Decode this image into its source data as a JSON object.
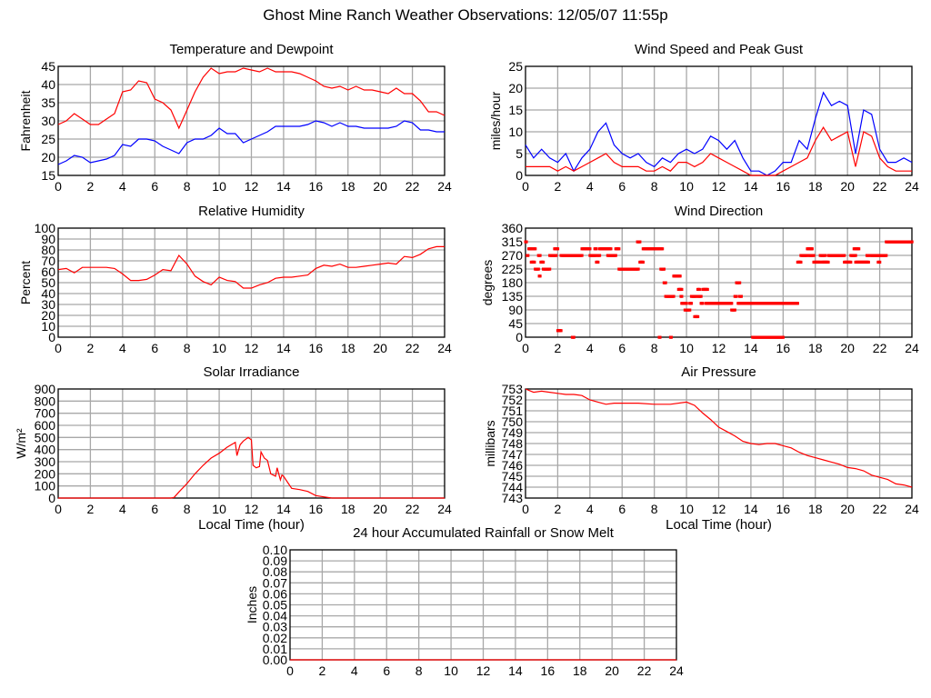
{
  "page_title": "Ghost Mine Ranch Weather Observations: 12/05/07 11:55p",
  "chart_data": [
    {
      "type": "line",
      "title": "Temperature and Dewpoint",
      "xlabel": "",
      "ylabel": "Fahrenheit",
      "xlim": [
        0,
        24
      ],
      "ylim": [
        15,
        45
      ],
      "xticks": [
        "0",
        "2",
        "4",
        "6",
        "8",
        "10",
        "12",
        "14",
        "16",
        "18",
        "20",
        "22",
        "24"
      ],
      "yticks": [
        "15",
        "20",
        "25",
        "30",
        "35",
        "40",
        "45"
      ],
      "grid": true,
      "x": [
        0,
        0.5,
        1,
        1.5,
        2,
        2.5,
        3,
        3.5,
        4,
        4.5,
        5,
        5.5,
        6,
        6.5,
        7,
        7.5,
        8,
        8.5,
        9,
        9.5,
        10,
        10.5,
        11,
        11.5,
        12,
        12.5,
        13,
        13.5,
        14,
        14.5,
        15,
        15.5,
        16,
        16.5,
        17,
        17.5,
        18,
        18.5,
        19,
        19.5,
        20,
        20.5,
        21,
        21.5,
        22,
        22.5,
        23,
        23.5,
        24
      ],
      "series": [
        {
          "name": "Temperature",
          "color": "#ff0000",
          "values": [
            29,
            30,
            32,
            30.5,
            29,
            29,
            30.5,
            32,
            38,
            38.5,
            41,
            40.5,
            36,
            35,
            33,
            28,
            33,
            38,
            42,
            44.5,
            43,
            43.5,
            43.5,
            44.5,
            44,
            43.5,
            44.5,
            43.5,
            43.5,
            43.5,
            43,
            42,
            41,
            39.5,
            39,
            39.5,
            38.5,
            39.5,
            38.5,
            38.5,
            38,
            37.5,
            39,
            37.5,
            37.5,
            35.5,
            32.5,
            32.5,
            31.5
          ]
        },
        {
          "name": "Dewpoint",
          "color": "#0000ff",
          "values": [
            18,
            19,
            20.5,
            20,
            18.5,
            19,
            19.5,
            20.5,
            23.5,
            23,
            25,
            25,
            24.5,
            23,
            22,
            21,
            24,
            25,
            25,
            26,
            28,
            26.5,
            26.5,
            24,
            25,
            26,
            27,
            28.5,
            28.5,
            28.5,
            28.5,
            29,
            30,
            29.5,
            28.5,
            29.5,
            28.5,
            28.5,
            28,
            28,
            28,
            28,
            28.5,
            30,
            29.5,
            27.5,
            27.5,
            27,
            27
          ]
        }
      ]
    },
    {
      "type": "line",
      "title": "Wind Speed and Peak Gust",
      "xlabel": "",
      "ylabel": "miles/hour",
      "xlim": [
        0,
        24
      ],
      "ylim": [
        0,
        25
      ],
      "xticks": [
        "0",
        "2",
        "4",
        "6",
        "8",
        "10",
        "12",
        "14",
        "16",
        "18",
        "20",
        "22",
        "24"
      ],
      "yticks": [
        "0",
        "5",
        "10",
        "15",
        "20",
        "25"
      ],
      "grid": true,
      "x": [
        0,
        0.5,
        1,
        1.5,
        2,
        2.5,
        3,
        3.5,
        4,
        4.5,
        5,
        5.5,
        6,
        6.5,
        7,
        7.5,
        8,
        8.5,
        9,
        9.5,
        10,
        10.5,
        11,
        11.5,
        12,
        12.5,
        13,
        13.5,
        14,
        14.5,
        15,
        15.5,
        16,
        16.5,
        17,
        17.5,
        18,
        18.5,
        19,
        19.5,
        20,
        20.5,
        21,
        21.5,
        22,
        22.5,
        23,
        23.5,
        24
      ],
      "series": [
        {
          "name": "Peak Gust",
          "color": "#0000ff",
          "values": [
            7,
            4,
            6,
            4,
            3,
            5,
            1,
            4,
            6,
            10,
            12,
            7,
            5,
            4,
            5,
            3,
            2,
            4,
            3,
            5,
            6,
            5,
            6,
            9,
            8,
            6,
            8,
            4,
            1,
            1,
            0,
            1,
            3,
            3,
            8,
            6,
            13,
            19,
            16,
            17,
            16,
            5,
            15,
            14,
            6,
            3,
            3,
            4,
            3
          ]
        },
        {
          "name": "Wind Speed",
          "color": "#ff0000",
          "values": [
            2,
            2,
            2,
            2,
            1,
            2,
            1,
            2,
            3,
            4,
            5,
            3,
            2,
            2,
            2,
            1,
            1,
            2,
            1,
            3,
            3,
            2,
            3,
            5,
            4,
            3,
            2,
            1,
            0,
            0,
            0,
            0,
            1,
            2,
            3,
            4,
            8,
            11,
            8,
            9,
            10,
            2,
            10,
            9,
            4,
            2,
            1,
            1,
            1
          ]
        }
      ]
    },
    {
      "type": "line",
      "title": "Relative Humidity",
      "xlabel": "",
      "ylabel": "Percent",
      "xlim": [
        0,
        24
      ],
      "ylim": [
        0,
        100
      ],
      "xticks": [
        "0",
        "2",
        "4",
        "6",
        "8",
        "10",
        "12",
        "14",
        "16",
        "18",
        "20",
        "22",
        "24"
      ],
      "yticks": [
        "0",
        "10",
        "20",
        "30",
        "40",
        "50",
        "60",
        "70",
        "80",
        "90",
        "100"
      ],
      "grid": true,
      "x": [
        0,
        0.5,
        1,
        1.5,
        2,
        2.5,
        3,
        3.5,
        4,
        4.5,
        5,
        5.5,
        6,
        6.5,
        7,
        7.5,
        8,
        8.5,
        9,
        9.5,
        10,
        10.5,
        11,
        11.5,
        12,
        12.5,
        13,
        13.5,
        14,
        14.5,
        15,
        15.5,
        16,
        16.5,
        17,
        17.5,
        18,
        18.5,
        19,
        19.5,
        20,
        20.5,
        21,
        21.5,
        22,
        22.5,
        23,
        23.5,
        24
      ],
      "series": [
        {
          "name": "Relative Humidity",
          "color": "#ff0000",
          "values": [
            62,
            63,
            59,
            64,
            64,
            64,
            64,
            63,
            58,
            52,
            52,
            53,
            57,
            62,
            61,
            75,
            67,
            56,
            51,
            48,
            55,
            52,
            51,
            45,
            45,
            48,
            50,
            54,
            55,
            55,
            56,
            57,
            63,
            66,
            65,
            67,
            64,
            64,
            65,
            66,
            67,
            68,
            67,
            74,
            73,
            76,
            81,
            83,
            83
          ]
        }
      ]
    },
    {
      "type": "scatter",
      "title": "Wind Direction",
      "xlabel": "",
      "ylabel": "degrees",
      "xlim": [
        0,
        24
      ],
      "ylim": [
        0,
        360
      ],
      "xticks": [
        "0",
        "2",
        "4",
        "6",
        "8",
        "10",
        "12",
        "14",
        "16",
        "18",
        "20",
        "22",
        "24"
      ],
      "yticks": [
        "0",
        "45",
        "90",
        "135",
        "180",
        "225",
        "270",
        "315",
        "360"
      ],
      "grid": true,
      "series": [
        {
          "name": "Wind Direction",
          "color": "#ff0000",
          "runs_hours_start_end_degrees": [
            [
              0,
              0.05,
              315
            ],
            [
              0.1,
              0.15,
              270
            ],
            [
              0.2,
              0.4,
              292
            ],
            [
              0.35,
              0.55,
              248
            ],
            [
              0.5,
              0.6,
              292
            ],
            [
              0.6,
              0.8,
              225
            ],
            [
              0.8,
              0.9,
              270
            ],
            [
              0.85,
              0.9,
              202
            ],
            [
              0.95,
              1.1,
              248
            ],
            [
              1.1,
              1.5,
              225
            ],
            [
              1.5,
              1.9,
              270
            ],
            [
              1.8,
              2.0,
              292
            ],
            [
              2.0,
              2.2,
              22
            ],
            [
              2.2,
              3.5,
              270
            ],
            [
              2.9,
              3.0,
              0
            ],
            [
              3.5,
              4.0,
              292
            ],
            [
              4.0,
              4.4,
              270
            ],
            [
              4.3,
              4.4,
              292
            ],
            [
              4.4,
              4.5,
              248
            ],
            [
              4.5,
              4.6,
              270
            ],
            [
              4.6,
              5.3,
              292
            ],
            [
              5.1,
              5.6,
              270
            ],
            [
              5.6,
              5.8,
              292
            ],
            [
              5.8,
              7.0,
              225
            ],
            [
              6.95,
              7.1,
              315
            ],
            [
              7.1,
              7.3,
              248
            ],
            [
              7.3,
              8.5,
              292
            ],
            [
              8.3,
              8.35,
              0
            ],
            [
              8.4,
              8.6,
              225
            ],
            [
              8.6,
              8.7,
              180
            ],
            [
              8.7,
              9.2,
              135
            ],
            [
              9.0,
              9.05,
              0
            ],
            [
              9.2,
              9.6,
              202
            ],
            [
              9.5,
              9.7,
              158
            ],
            [
              9.65,
              9.7,
              135
            ],
            [
              9.7,
              10.0,
              112
            ],
            [
              9.9,
              10.2,
              90
            ],
            [
              10.2,
              10.3,
              112
            ],
            [
              10.3,
              10.6,
              135
            ],
            [
              10.5,
              10.7,
              68
            ],
            [
              10.7,
              10.8,
              158
            ],
            [
              10.7,
              10.9,
              135
            ],
            [
              10.9,
              11.0,
              112
            ],
            [
              11.0,
              11.3,
              158
            ],
            [
              11.2,
              12.8,
              112
            ],
            [
              12.8,
              13.0,
              90
            ],
            [
              13.0,
              13.1,
              135
            ],
            [
              13.1,
              13.3,
              180
            ],
            [
              13.2,
              14.0,
              112
            ],
            [
              13.3,
              13.4,
              135
            ],
            [
              14.0,
              14.2,
              112
            ],
            [
              14.1,
              16.0,
              0
            ],
            [
              14.3,
              16.9,
              112
            ],
            [
              16.9,
              17.1,
              248
            ],
            [
              17.1,
              17.5,
              270
            ],
            [
              17.5,
              17.8,
              292
            ],
            [
              17.6,
              17.9,
              270
            ],
            [
              17.9,
              18.3,
              248
            ],
            [
              18.3,
              18.6,
              270
            ],
            [
              18.4,
              18.8,
              248
            ],
            [
              18.8,
              19.8,
              270
            ],
            [
              19.8,
              20.2,
              248
            ],
            [
              20.2,
              20.5,
              270
            ],
            [
              20.4,
              20.7,
              292
            ],
            [
              20.5,
              21.3,
              248
            ],
            [
              21.2,
              21.3,
              270
            ],
            [
              21.4,
              22.4,
              270
            ],
            [
              21.9,
              22.0,
              248
            ],
            [
              22.4,
              24,
              315
            ]
          ]
        }
      ]
    },
    {
      "type": "line",
      "title": "Solar Irradiance",
      "xlabel": "Local Time (hour)",
      "ylabel": "W/m²",
      "xlim": [
        0,
        24
      ],
      "ylim": [
        0,
        900
      ],
      "xticks": [
        "0",
        "2",
        "4",
        "6",
        "8",
        "10",
        "12",
        "14",
        "16",
        "18",
        "20",
        "22",
        "24"
      ],
      "yticks": [
        "0",
        "100",
        "200",
        "300",
        "400",
        "500",
        "600",
        "700",
        "800",
        "900"
      ],
      "grid": true,
      "x": [
        0,
        7,
        7.2,
        7.5,
        8,
        8.5,
        9,
        9.5,
        10,
        10.5,
        11,
        11.1,
        11.3,
        11.5,
        11.8,
        12,
        12.1,
        12.3,
        12.5,
        12.6,
        12.8,
        13,
        13.2,
        13.5,
        13.6,
        13.8,
        13.9,
        14,
        14.3,
        14.5,
        15,
        15.5,
        16,
        16.5,
        17,
        24
      ],
      "series": [
        {
          "name": "Solar Irradiance",
          "color": "#ff0000",
          "values": [
            0,
            0,
            5,
            50,
            120,
            200,
            270,
            330,
            370,
            420,
            460,
            350,
            440,
            470,
            500,
            480,
            270,
            250,
            260,
            380,
            330,
            310,
            200,
            180,
            250,
            150,
            190,
            180,
            120,
            80,
            70,
            55,
            20,
            10,
            0,
            0
          ]
        }
      ]
    },
    {
      "type": "line",
      "title": "Air Pressure",
      "xlabel": "Local Time (hour)",
      "ylabel": "millibars",
      "xlim": [
        0,
        24
      ],
      "ylim": [
        743,
        753
      ],
      "xticks": [
        "0",
        "2",
        "4",
        "6",
        "8",
        "10",
        "12",
        "14",
        "16",
        "18",
        "20",
        "22",
        "24"
      ],
      "yticks": [
        "743",
        "744",
        "745",
        "746",
        "747",
        "748",
        "749",
        "750",
        "751",
        "752",
        "753"
      ],
      "grid": true,
      "x": [
        0,
        0.5,
        1,
        1.5,
        2,
        2.5,
        3,
        3.5,
        4,
        4.5,
        5,
        5.5,
        6,
        7,
        8,
        9,
        10,
        10.5,
        11,
        11.5,
        12,
        12.5,
        13,
        13.5,
        14,
        14.5,
        15,
        15.5,
        16,
        16.5,
        17,
        17.5,
        18,
        18.5,
        19,
        19.5,
        20,
        20.5,
        21,
        21.5,
        22,
        22.5,
        23,
        23.5,
        24
      ],
      "series": [
        {
          "name": "Air Pressure",
          "color": "#ff0000",
          "values": [
            753,
            752.7,
            752.8,
            752.7,
            752.6,
            752.5,
            752.5,
            752.4,
            752,
            751.8,
            751.6,
            751.7,
            751.7,
            751.7,
            751.6,
            751.6,
            751.8,
            751.5,
            750.8,
            750.2,
            749.5,
            749.1,
            748.7,
            748.2,
            748,
            747.9,
            748,
            748,
            747.8,
            747.6,
            747.2,
            746.9,
            746.7,
            746.5,
            746.3,
            746.1,
            745.8,
            745.7,
            745.5,
            745.1,
            744.9,
            744.7,
            744.3,
            744.2,
            744
          ]
        }
      ]
    },
    {
      "type": "line",
      "title": "24 hour Accumulated Rainfall or Snow Melt",
      "xlabel": "",
      "ylabel": "Inches",
      "xlim": [
        0,
        24
      ],
      "ylim": [
        0,
        0.1
      ],
      "xticks": [
        "0",
        "2",
        "4",
        "6",
        "8",
        "10",
        "12",
        "14",
        "16",
        "18",
        "20",
        "22",
        "24"
      ],
      "yticks": [
        "0.00",
        "0.01",
        "0.02",
        "0.03",
        "0.04",
        "0.05",
        "0.06",
        "0.07",
        "0.08",
        "0.09",
        "0.10"
      ],
      "grid": true,
      "x": [
        0,
        24
      ],
      "series": [
        {
          "name": "Rainfall",
          "color": "#ff0000",
          "values": [
            0,
            0
          ]
        }
      ]
    }
  ]
}
